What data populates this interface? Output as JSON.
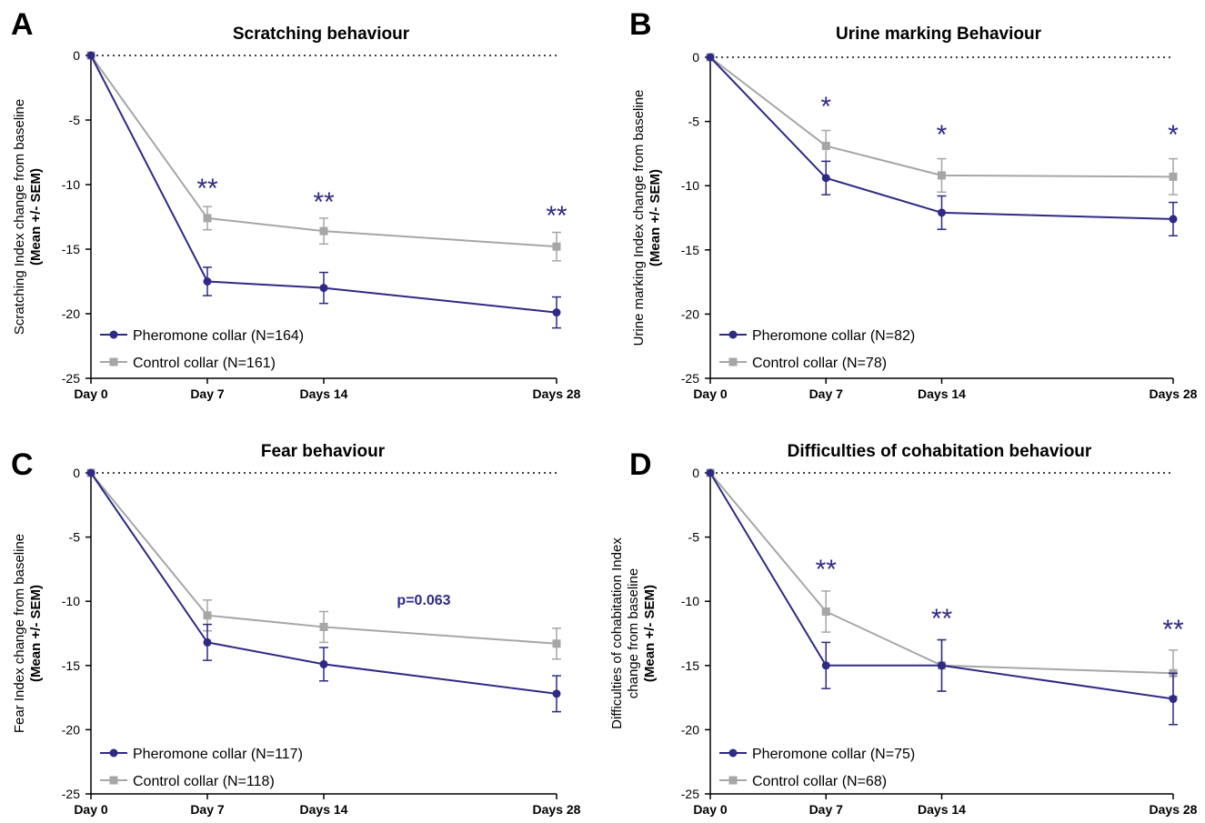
{
  "colors": {
    "pheromone": "#2e2a85",
    "control": "#a6a6a6",
    "axis": "#000000"
  },
  "chart_data": [
    {
      "type": "line",
      "letter": "A",
      "title": "Scratching behaviour",
      "ylabel": [
        "Scratching Index change from baseline",
        "(Mean +/- SEM)"
      ],
      "categories": [
        "Day 0",
        "Day 7",
        "Days 14",
        "Days 28"
      ],
      "x": [
        0,
        7,
        14,
        28
      ],
      "ylim": [
        -25,
        0
      ],
      "yticks": [
        "0",
        "-5",
        "-10",
        "-15",
        "-20",
        "-25"
      ],
      "series": [
        {
          "name": "Pheromone collar (N=164)",
          "values": [
            0,
            -17.5,
            -18,
            -19.9
          ],
          "sem": [
            0,
            1.1,
            1.2,
            1.2
          ]
        },
        {
          "name": "Control collar (N=161)",
          "values": [
            0,
            -12.6,
            -13.6,
            -14.8
          ],
          "sem": [
            0,
            0.9,
            1.0,
            1.1
          ]
        }
      ],
      "significance": [
        "",
        "**",
        "**",
        "**"
      ],
      "annotation": ""
    },
    {
      "type": "line",
      "letter": "B",
      "title": "Urine marking Behaviour",
      "ylabel": [
        "Urine marking Index change from baseline",
        "(Mean +/- SEM)"
      ],
      "categories": [
        "Day 0",
        "Day 7",
        "Days 14",
        "Days 28"
      ],
      "x": [
        0,
        7,
        14,
        28
      ],
      "ylim": [
        -25,
        0
      ],
      "yticks": [
        "0",
        "-5",
        "-10",
        "-15",
        "-20",
        "-25"
      ],
      "series": [
        {
          "name": "Pheromone collar (N=82)",
          "values": [
            0,
            -9.4,
            -12.1,
            -12.6
          ],
          "sem": [
            0,
            1.3,
            1.3,
            1.3
          ]
        },
        {
          "name": "Control collar (N=78)",
          "values": [
            0,
            -6.9,
            -9.2,
            -9.3
          ],
          "sem": [
            0,
            1.2,
            1.3,
            1.4
          ]
        }
      ],
      "significance": [
        "",
        "*",
        "*",
        "*"
      ],
      "annotation": ""
    },
    {
      "type": "line",
      "letter": "C",
      "title": "Fear behaviour",
      "ylabel": [
        "Fear Index change from baseline",
        "(Mean +/- SEM)"
      ],
      "categories": [
        "Day 0",
        "Day 7",
        "Days 14",
        "Days 28"
      ],
      "x": [
        0,
        7,
        14,
        28
      ],
      "ylim": [
        -25,
        0
      ],
      "yticks": [
        "0",
        "-5",
        "-10",
        "-15",
        "-20",
        "-25"
      ],
      "series": [
        {
          "name": "Pheromone collar (N=117)",
          "values": [
            0,
            -13.2,
            -14.9,
            -17.2
          ],
          "sem": [
            0,
            1.4,
            1.3,
            1.4
          ]
        },
        {
          "name": "Control collar (N=118)",
          "values": [
            0,
            -11.1,
            -12.0,
            -13.3
          ],
          "sem": [
            0,
            1.2,
            1.2,
            1.2
          ]
        }
      ],
      "significance": [
        "",
        "",
        "",
        ""
      ],
      "annotation": "p=0.063"
    },
    {
      "type": "line",
      "letter": "D",
      "title": "Difficulties of cohabitation behaviour",
      "ylabel": [
        "Difficulties of cohabitation Index",
        "change from baseline",
        "(Mean +/- SEM)"
      ],
      "categories": [
        "Day 0",
        "Day 7",
        "Days 14",
        "Days 28"
      ],
      "x": [
        0,
        7,
        14,
        28
      ],
      "ylim": [
        -25,
        0
      ],
      "yticks": [
        "0",
        "-5",
        "-10",
        "-15",
        "-20",
        "-25"
      ],
      "series": [
        {
          "name": "Pheromone collar (N=75)",
          "values": [
            0,
            -15.0,
            -15.0,
            -17.6
          ],
          "sem": [
            0,
            1.8,
            2.0,
            2.0
          ]
        },
        {
          "name": "Control collar (N=68)",
          "values": [
            0,
            -10.8,
            -15.0,
            -15.6
          ],
          "sem": [
            0,
            1.6,
            2.0,
            1.8
          ]
        }
      ],
      "significance": [
        "",
        "**",
        "**",
        "**"
      ],
      "annotation": ""
    }
  ]
}
